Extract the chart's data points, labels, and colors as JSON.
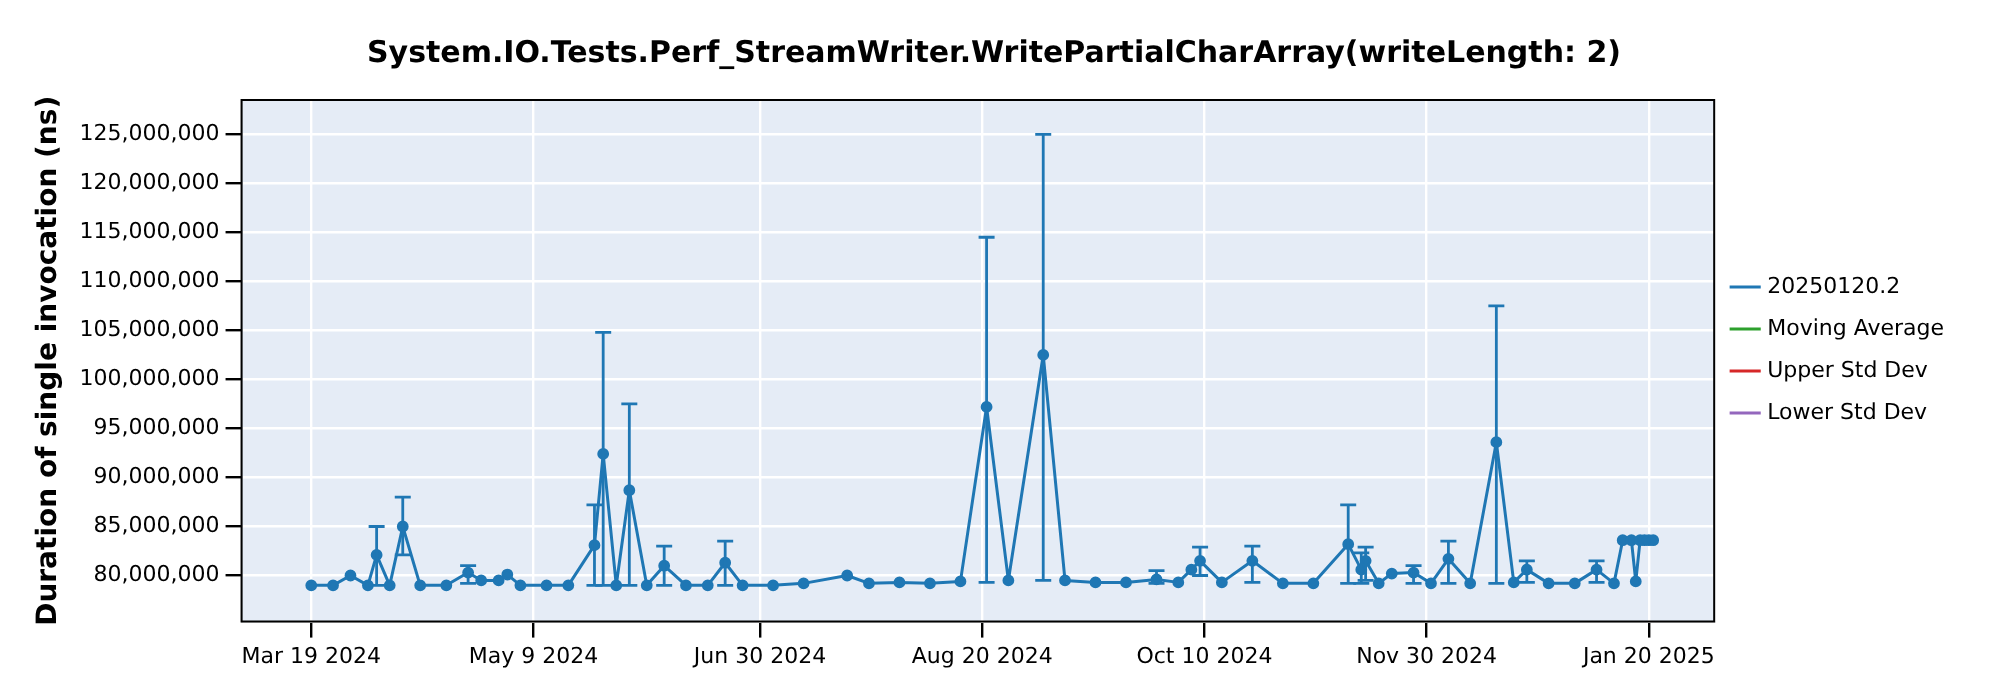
{
  "chart_data": {
    "type": "line",
    "title": "System.IO.Tests.Perf_StreamWriter.WritePartialCharArray(writeLength: 2)",
    "ylabel": "Duration of single invocation (ns)",
    "x": [
      "2024-03-19",
      "2024-03-24",
      "2024-03-28",
      "2024-04-01",
      "2024-04-03",
      "2024-04-06",
      "2024-04-09",
      "2024-04-13",
      "2024-04-19",
      "2024-04-24",
      "2024-04-27",
      "2024-05-01",
      "2024-05-03",
      "2024-05-06",
      "2024-05-12",
      "2024-05-17",
      "2024-05-23",
      "2024-05-25",
      "2024-05-28",
      "2024-05-31",
      "2024-06-04",
      "2024-06-08",
      "2024-06-13",
      "2024-06-18",
      "2024-06-22",
      "2024-06-26",
      "2024-07-03",
      "2024-07-10",
      "2024-07-20",
      "2024-07-25",
      "2024-08-01",
      "2024-08-08",
      "2024-08-15",
      "2024-08-21",
      "2024-08-26",
      "2024-09-03",
      "2024-09-08",
      "2024-09-15",
      "2024-09-22",
      "2024-09-29",
      "2024-10-04",
      "2024-10-07",
      "2024-10-09",
      "2024-10-14",
      "2024-10-21",
      "2024-10-28",
      "2024-11-04",
      "2024-11-12",
      "2024-11-15",
      "2024-11-16",
      "2024-11-19",
      "2024-11-22",
      "2024-11-27",
      "2024-12-01",
      "2024-12-05",
      "2024-12-10",
      "2024-12-16",
      "2024-12-20",
      "2024-12-23",
      "2024-12-28",
      "2025-01-03",
      "2025-01-08",
      "2025-01-12",
      "2025-01-14",
      "2025-01-16",
      "2025-01-17",
      "2025-01-18",
      "2025-01-19",
      "2025-01-20",
      "2025-01-21"
    ],
    "series": [
      {
        "name": "20250120.2",
        "color": "#1f77b4",
        "values": [
          79000000,
          79000000,
          80000000,
          79000000,
          82100000,
          79000000,
          85000000,
          79000000,
          79000000,
          80300000,
          79500000,
          79500000,
          80100000,
          79000000,
          79000000,
          79000000,
          83100000,
          92400000,
          79000000,
          88700000,
          79000000,
          81000000,
          79000000,
          79000000,
          81300000,
          79000000,
          79000000,
          79200000,
          80000000,
          79200000,
          79300000,
          79200000,
          79400000,
          97200000,
          79500000,
          102500000,
          79500000,
          79300000,
          79300000,
          79600000,
          79300000,
          80600000,
          81500000,
          79300000,
          81500000,
          79200000,
          79200000,
          83200000,
          80600000,
          81500000,
          79200000,
          80200000,
          80300000,
          79200000,
          81700000,
          79200000,
          93600000,
          79300000,
          80600000,
          79200000,
          79200000,
          80600000,
          79200000,
          83600000,
          83600000,
          79400000,
          83600000,
          83600000,
          83600000,
          83600000
        ],
        "errors": [
          null,
          null,
          null,
          null,
          [
            79000000,
            85000000
          ],
          null,
          [
            82100000,
            88000000
          ],
          null,
          null,
          [
            79200000,
            81000000
          ],
          null,
          null,
          null,
          null,
          null,
          null,
          [
            79000000,
            87200000
          ],
          [
            79000000,
            104800000
          ],
          null,
          [
            79000000,
            97500000
          ],
          null,
          [
            79000000,
            83000000
          ],
          null,
          null,
          [
            79000000,
            83500000
          ],
          null,
          null,
          null,
          null,
          null,
          null,
          null,
          null,
          [
            79300000,
            114500000
          ],
          null,
          [
            79500000,
            125000000
          ],
          null,
          null,
          null,
          [
            79200000,
            80500000
          ],
          null,
          null,
          [
            80000000,
            82900000
          ],
          null,
          [
            79300000,
            83000000
          ],
          null,
          null,
          [
            79200000,
            87200000
          ],
          [
            79200000,
            82300000
          ],
          [
            79500000,
            82900000
          ],
          null,
          null,
          [
            79200000,
            81000000
          ],
          null,
          [
            79200000,
            83500000
          ],
          null,
          [
            79200000,
            107500000
          ],
          null,
          [
            79300000,
            81500000
          ],
          null,
          null,
          [
            79300000,
            81500000
          ],
          null,
          null,
          null,
          null,
          null,
          null,
          null,
          null
        ]
      },
      {
        "name": "Moving Average",
        "color": "#2ca02c",
        "values": [
          null,
          null,
          null,
          null,
          null,
          null,
          null,
          null,
          null,
          null,
          null,
          null,
          null,
          null,
          null,
          null,
          null,
          null,
          null,
          null,
          null,
          null,
          null,
          null,
          null,
          null,
          null,
          null,
          null,
          null,
          null,
          null,
          null,
          null,
          null,
          null,
          null,
          null,
          null,
          null,
          null,
          null,
          null,
          null,
          null,
          null,
          null,
          null,
          null,
          null,
          null,
          null,
          null,
          null,
          null,
          null,
          null,
          null,
          null,
          null,
          null,
          null,
          null,
          null,
          null,
          null,
          null,
          null,
          null,
          null
        ]
      },
      {
        "name": "Upper Std Dev",
        "color": "#d62728",
        "values": [
          null,
          null,
          null,
          null,
          null,
          null,
          null,
          null,
          null,
          null,
          null,
          null,
          null,
          null,
          null,
          null,
          null,
          null,
          null,
          null,
          null,
          null,
          null,
          null,
          null,
          null,
          null,
          null,
          null,
          null,
          null,
          null,
          null,
          null,
          null,
          null,
          null,
          null,
          null,
          null,
          null,
          null,
          null,
          null,
          null,
          null,
          null,
          null,
          null,
          null,
          null,
          null,
          null,
          null,
          null,
          null,
          null,
          null,
          null,
          null,
          null,
          null,
          null,
          null,
          null,
          null,
          null,
          null,
          null,
          null
        ]
      },
      {
        "name": "Lower Std Dev",
        "color": "#9467bd",
        "values": [
          null,
          null,
          null,
          null,
          null,
          null,
          null,
          null,
          null,
          null,
          null,
          null,
          null,
          null,
          null,
          null,
          null,
          null,
          null,
          null,
          null,
          null,
          null,
          null,
          null,
          null,
          null,
          null,
          null,
          null,
          null,
          null,
          null,
          null,
          null,
          null,
          null,
          null,
          null,
          null,
          null,
          null,
          null,
          null,
          null,
          null,
          null,
          null,
          null,
          null,
          null,
          null,
          null,
          null,
          null,
          null,
          null,
          null,
          null,
          null,
          null,
          null,
          null,
          null,
          null,
          null,
          null,
          null,
          null,
          null
        ]
      }
    ],
    "xlim": [
      "2024-03-03",
      "2025-02-04"
    ],
    "xticks": [
      {
        "value": "2024-03-19",
        "label": "Mar 19 2024"
      },
      {
        "value": "2024-05-09",
        "label": "May 9 2024"
      },
      {
        "value": "2024-06-30",
        "label": "Jun 30 2024"
      },
      {
        "value": "2024-08-20",
        "label": "Aug 20 2024"
      },
      {
        "value": "2024-10-10",
        "label": "Oct 10 2024"
      },
      {
        "value": "2024-11-30",
        "label": "Nov 30 2024"
      },
      {
        "value": "2025-01-20",
        "label": "Jan 20 2025"
      }
    ],
    "ylim": [
      75300000,
      128500000
    ],
    "yticks": [
      {
        "value": 80000000,
        "label": "80,000,000"
      },
      {
        "value": 85000000,
        "label": "85,000,000"
      },
      {
        "value": 90000000,
        "label": "90,000,000"
      },
      {
        "value": 95000000,
        "label": "95,000,000"
      },
      {
        "value": 100000000,
        "label": "100,000,000"
      },
      {
        "value": 105000000,
        "label": "105,000,000"
      },
      {
        "value": 110000000,
        "label": "110,000,000"
      },
      {
        "value": 115000000,
        "label": "115,000,000"
      },
      {
        "value": 120000000,
        "label": "120,000,000"
      },
      {
        "value": 125000000,
        "label": "125,000,000"
      }
    ],
    "grid": true,
    "legend": "right",
    "marker": "circle",
    "line_style": "solid"
  }
}
